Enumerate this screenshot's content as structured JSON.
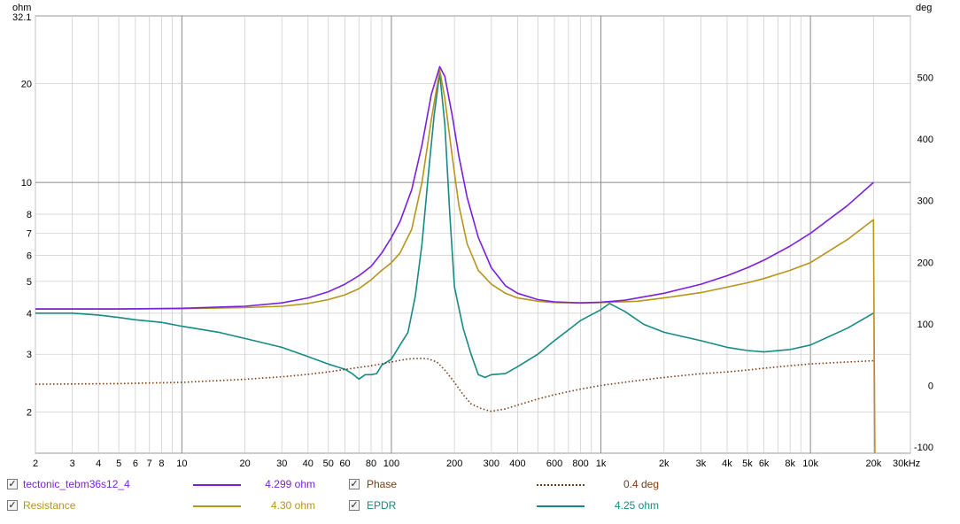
{
  "chart_data": {
    "type": "line",
    "left_axis_unit": "ohm",
    "right_axis_unit": "deg",
    "x_unit_label": "30kHz",
    "x_scale": "log",
    "y_scale": "log",
    "xlim": [
      2,
      30000
    ],
    "ylim_left": [
      1.5,
      32.1
    ],
    "ylim_right": [
      -110,
      600
    ],
    "y_top_label": "32.1",
    "x_ticks": [
      {
        "v": 2,
        "t": "2"
      },
      {
        "v": 3,
        "t": "3"
      },
      {
        "v": 4,
        "t": "4"
      },
      {
        "v": 5,
        "t": "5"
      },
      {
        "v": 6,
        "t": "6"
      },
      {
        "v": 7,
        "t": "7"
      },
      {
        "v": 8,
        "t": "8"
      },
      {
        "v": 10,
        "t": "10"
      },
      {
        "v": 20,
        "t": "20"
      },
      {
        "v": 30,
        "t": "30"
      },
      {
        "v": 40,
        "t": "40"
      },
      {
        "v": 50,
        "t": "50"
      },
      {
        "v": 60,
        "t": "60"
      },
      {
        "v": 80,
        "t": "80"
      },
      {
        "v": 100,
        "t": "100"
      },
      {
        "v": 200,
        "t": "200"
      },
      {
        "v": 300,
        "t": "300"
      },
      {
        "v": 400,
        "t": "400"
      },
      {
        "v": 600,
        "t": "600"
      },
      {
        "v": 800,
        "t": "800"
      },
      {
        "v": 1000,
        "t": "1k"
      },
      {
        "v": 2000,
        "t": "2k"
      },
      {
        "v": 3000,
        "t": "3k"
      },
      {
        "v": 4000,
        "t": "4k"
      },
      {
        "v": 5000,
        "t": "5k"
      },
      {
        "v": 6000,
        "t": "6k"
      },
      {
        "v": 8000,
        "t": "8k"
      },
      {
        "v": 10000,
        "t": "10k"
      },
      {
        "v": 20000,
        "t": "20k"
      }
    ],
    "y_ticks_left": [
      {
        "v": 2,
        "t": "2"
      },
      {
        "v": 3,
        "t": "3"
      },
      {
        "v": 4,
        "t": "4"
      },
      {
        "v": 5,
        "t": "5"
      },
      {
        "v": 6,
        "t": "6"
      },
      {
        "v": 7,
        "t": "7"
      },
      {
        "v": 8,
        "t": "8"
      },
      {
        "v": 10,
        "t": "10"
      },
      {
        "v": 20,
        "t": "20"
      }
    ],
    "y_ticks_right": [
      {
        "v": -100,
        "t": "-100"
      },
      {
        "v": 0,
        "t": "0"
      },
      {
        "v": 100,
        "t": "100"
      },
      {
        "v": 200,
        "t": "200"
      },
      {
        "v": 300,
        "t": "300"
      },
      {
        "v": 400,
        "t": "400"
      },
      {
        "v": 500,
        "t": "500"
      }
    ],
    "series": [
      {
        "name": "tectonic_tebm36s12_4",
        "value_label": "4.299 ohm",
        "color": "#7a1fe0",
        "style": "solid",
        "axis": "left",
        "points": [
          [
            2,
            4.12
          ],
          [
            5,
            4.12
          ],
          [
            10,
            4.14
          ],
          [
            20,
            4.2
          ],
          [
            30,
            4.3
          ],
          [
            40,
            4.45
          ],
          [
            50,
            4.65
          ],
          [
            60,
            4.9
          ],
          [
            70,
            5.2
          ],
          [
            80,
            5.55
          ],
          [
            90,
            6.1
          ],
          [
            100,
            6.8
          ],
          [
            110,
            7.6
          ],
          [
            125,
            9.5
          ],
          [
            140,
            13
          ],
          [
            155,
            18.5
          ],
          [
            170,
            22.5
          ],
          [
            180,
            21
          ],
          [
            195,
            16
          ],
          [
            210,
            12
          ],
          [
            230,
            9
          ],
          [
            260,
            6.8
          ],
          [
            300,
            5.5
          ],
          [
            350,
            4.85
          ],
          [
            400,
            4.6
          ],
          [
            500,
            4.4
          ],
          [
            600,
            4.33
          ],
          [
            800,
            4.3
          ],
          [
            1000,
            4.32
          ],
          [
            1300,
            4.38
          ],
          [
            2000,
            4.6
          ],
          [
            3000,
            4.9
          ],
          [
            4000,
            5.2
          ],
          [
            5000,
            5.5
          ],
          [
            6000,
            5.8
          ],
          [
            8000,
            6.4
          ],
          [
            10000,
            7.0
          ],
          [
            15000,
            8.5
          ],
          [
            20000,
            10.0
          ]
        ]
      },
      {
        "name": "Resistance",
        "value_label": "4.30 ohm",
        "color": "#b8941a",
        "style": "solid",
        "axis": "left",
        "points": [
          [
            2,
            4.12
          ],
          [
            5,
            4.12
          ],
          [
            10,
            4.13
          ],
          [
            20,
            4.16
          ],
          [
            30,
            4.2
          ],
          [
            40,
            4.28
          ],
          [
            50,
            4.4
          ],
          [
            60,
            4.55
          ],
          [
            70,
            4.75
          ],
          [
            80,
            5.05
          ],
          [
            90,
            5.4
          ],
          [
            100,
            5.7
          ],
          [
            110,
            6.1
          ],
          [
            125,
            7.2
          ],
          [
            140,
            10
          ],
          [
            155,
            15.5
          ],
          [
            170,
            22
          ],
          [
            180,
            18
          ],
          [
            195,
            12
          ],
          [
            210,
            8.5
          ],
          [
            230,
            6.5
          ],
          [
            260,
            5.4
          ],
          [
            300,
            4.9
          ],
          [
            350,
            4.6
          ],
          [
            400,
            4.45
          ],
          [
            500,
            4.35
          ],
          [
            600,
            4.31
          ],
          [
            800,
            4.3
          ],
          [
            1000,
            4.31
          ],
          [
            1500,
            4.35
          ],
          [
            2000,
            4.45
          ],
          [
            3000,
            4.62
          ],
          [
            4000,
            4.8
          ],
          [
            5000,
            4.95
          ],
          [
            6000,
            5.1
          ],
          [
            8000,
            5.4
          ],
          [
            10000,
            5.7
          ],
          [
            15000,
            6.7
          ],
          [
            20000,
            7.7
          ],
          [
            20300,
            1.5
          ]
        ]
      },
      {
        "name": "Phase",
        "value_label": "0.4 deg",
        "color": "#7a3b10",
        "style": "dotted",
        "axis": "right",
        "points": [
          [
            2,
            2
          ],
          [
            5,
            3
          ],
          [
            10,
            5
          ],
          [
            20,
            10
          ],
          [
            30,
            14
          ],
          [
            40,
            18
          ],
          [
            50,
            22
          ],
          [
            60,
            26
          ],
          [
            80,
            32
          ],
          [
            100,
            38
          ],
          [
            120,
            43
          ],
          [
            140,
            44
          ],
          [
            150,
            43
          ],
          [
            165,
            38
          ],
          [
            180,
            25
          ],
          [
            200,
            5
          ],
          [
            220,
            -15
          ],
          [
            240,
            -30
          ],
          [
            270,
            -38
          ],
          [
            300,
            -42
          ],
          [
            350,
            -38
          ],
          [
            400,
            -32
          ],
          [
            500,
            -22
          ],
          [
            600,
            -15
          ],
          [
            800,
            -6
          ],
          [
            1000,
            0
          ],
          [
            1500,
            8
          ],
          [
            2000,
            13
          ],
          [
            3000,
            19
          ],
          [
            4000,
            22
          ],
          [
            5000,
            25
          ],
          [
            6000,
            28
          ],
          [
            8000,
            32
          ],
          [
            10000,
            35
          ],
          [
            15000,
            38
          ],
          [
            20000,
            40
          ]
        ]
      },
      {
        "name": "EPDR",
        "value_label": "4.25 ohm",
        "color": "#168a85",
        "style": "solid",
        "axis": "left",
        "points": [
          [
            2,
            4.0
          ],
          [
            3,
            4.0
          ],
          [
            4,
            3.95
          ],
          [
            5,
            3.88
          ],
          [
            6,
            3.82
          ],
          [
            8,
            3.75
          ],
          [
            10,
            3.65
          ],
          [
            15,
            3.5
          ],
          [
            20,
            3.35
          ],
          [
            30,
            3.15
          ],
          [
            40,
            2.95
          ],
          [
            50,
            2.8
          ],
          [
            60,
            2.7
          ],
          [
            65,
            2.62
          ],
          [
            70,
            2.52
          ],
          [
            75,
            2.6
          ],
          [
            80,
            2.6
          ],
          [
            85,
            2.62
          ],
          [
            90,
            2.78
          ],
          [
            100,
            2.9
          ],
          [
            110,
            3.2
          ],
          [
            120,
            3.5
          ],
          [
            130,
            4.5
          ],
          [
            140,
            6.5
          ],
          [
            150,
            10.5
          ],
          [
            160,
            16
          ],
          [
            170,
            21.5
          ],
          [
            180,
            15
          ],
          [
            190,
            8
          ],
          [
            200,
            4.8
          ],
          [
            220,
            3.6
          ],
          [
            240,
            3.0
          ],
          [
            260,
            2.6
          ],
          [
            280,
            2.55
          ],
          [
            300,
            2.6
          ],
          [
            350,
            2.62
          ],
          [
            400,
            2.75
          ],
          [
            500,
            3.0
          ],
          [
            600,
            3.3
          ],
          [
            800,
            3.8
          ],
          [
            1000,
            4.1
          ],
          [
            1100,
            4.28
          ],
          [
            1300,
            4.05
          ],
          [
            1600,
            3.7
          ],
          [
            2000,
            3.5
          ],
          [
            3000,
            3.3
          ],
          [
            4000,
            3.15
          ],
          [
            5000,
            3.08
          ],
          [
            6000,
            3.05
          ],
          [
            8000,
            3.1
          ],
          [
            10000,
            3.2
          ],
          [
            15000,
            3.6
          ],
          [
            20000,
            4.0
          ]
        ]
      }
    ]
  },
  "legend": [
    {
      "label": "tectonic_tebm36s12_4",
      "value": "4.299 ohm"
    },
    {
      "label": "Resistance",
      "value": "4.30 ohm"
    },
    {
      "label": "Phase",
      "value": "0.4 deg"
    },
    {
      "label": "EPDR",
      "value": "4.25 ohm"
    }
  ],
  "checkbox_glyph": "✓"
}
